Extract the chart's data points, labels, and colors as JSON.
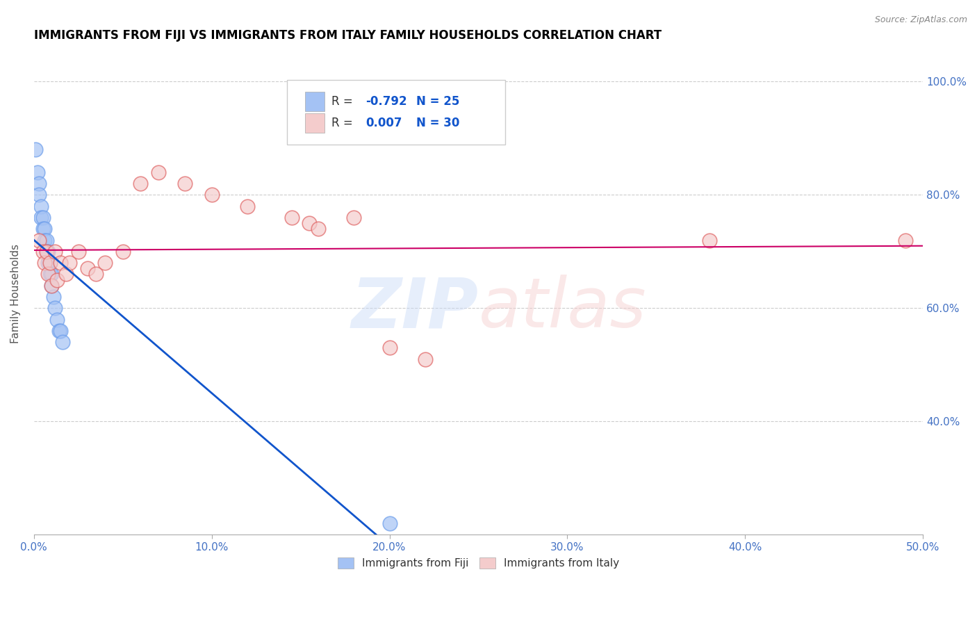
{
  "title": "IMMIGRANTS FROM FIJI VS IMMIGRANTS FROM ITALY FAMILY HOUSEHOLDS CORRELATION CHART",
  "source": "Source: ZipAtlas.com",
  "ylabel": "Family Households",
  "xlim": [
    0.0,
    0.5
  ],
  "ylim": [
    0.2,
    1.05
  ],
  "xtick_labels": [
    "0.0%",
    "10.0%",
    "20.0%",
    "30.0%",
    "40.0%",
    "50.0%"
  ],
  "xtick_vals": [
    0.0,
    0.1,
    0.2,
    0.3,
    0.4,
    0.5
  ],
  "ytick_labels": [
    "40.0%",
    "60.0%",
    "80.0%",
    "100.0%"
  ],
  "ytick_vals": [
    0.4,
    0.6,
    0.8,
    1.0
  ],
  "fiji_color": "#a4c2f4",
  "italy_color": "#f4cccc",
  "fiji_edge_color": "#6d9eeb",
  "italy_edge_color": "#e06666",
  "fiji_line_color": "#1155cc",
  "italy_line_color": "#cc0066",
  "fiji_R": -0.792,
  "fiji_N": 25,
  "italy_R": 0.007,
  "italy_N": 30,
  "legend_label_fiji": "Immigrants from Fiji",
  "legend_label_italy": "Immigrants from Italy",
  "fiji_x": [
    0.001,
    0.002,
    0.003,
    0.003,
    0.004,
    0.004,
    0.005,
    0.005,
    0.006,
    0.006,
    0.007,
    0.007,
    0.008,
    0.008,
    0.009,
    0.009,
    0.01,
    0.01,
    0.011,
    0.012,
    0.013,
    0.014,
    0.015,
    0.016,
    0.2
  ],
  "fiji_y": [
    0.88,
    0.84,
    0.82,
    0.8,
    0.78,
    0.76,
    0.76,
    0.74,
    0.74,
    0.72,
    0.72,
    0.7,
    0.7,
    0.68,
    0.68,
    0.66,
    0.66,
    0.64,
    0.62,
    0.6,
    0.58,
    0.56,
    0.56,
    0.54,
    0.22
  ],
  "italy_x": [
    0.003,
    0.005,
    0.006,
    0.007,
    0.008,
    0.009,
    0.01,
    0.012,
    0.013,
    0.015,
    0.018,
    0.02,
    0.025,
    0.03,
    0.035,
    0.04,
    0.05,
    0.06,
    0.07,
    0.085,
    0.1,
    0.12,
    0.145,
    0.155,
    0.16,
    0.18,
    0.2,
    0.22,
    0.38,
    0.49
  ],
  "italy_y": [
    0.72,
    0.7,
    0.68,
    0.7,
    0.66,
    0.68,
    0.64,
    0.7,
    0.65,
    0.68,
    0.66,
    0.68,
    0.7,
    0.67,
    0.66,
    0.68,
    0.7,
    0.82,
    0.84,
    0.82,
    0.8,
    0.78,
    0.76,
    0.75,
    0.74,
    0.76,
    0.53,
    0.51,
    0.72,
    0.72
  ],
  "background_color": "#ffffff",
  "grid_color": "#cccccc",
  "tick_color": "#4472c4",
  "title_color": "#000000",
  "source_color": "#888888"
}
